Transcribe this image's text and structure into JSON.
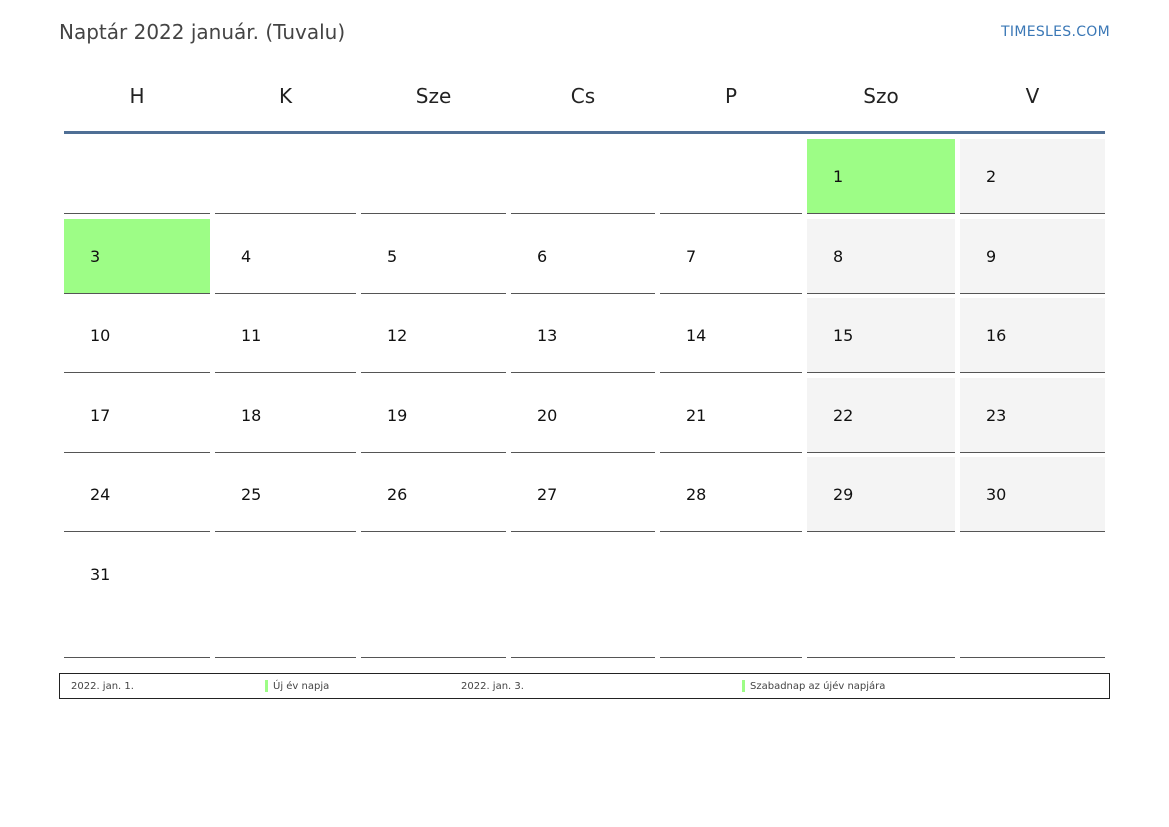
{
  "header": {
    "title": "Naptár 2022 január. (Tuvalu)",
    "brand": "TIMESLES.COM"
  },
  "weekdays": [
    "H",
    "K",
    "Sze",
    "Cs",
    "P",
    "Szo",
    "V"
  ],
  "weeks": [
    [
      "",
      "",
      "",
      "",
      "",
      "1",
      "2"
    ],
    [
      "3",
      "4",
      "5",
      "6",
      "7",
      "8",
      "9"
    ],
    [
      "10",
      "11",
      "12",
      "13",
      "14",
      "15",
      "16"
    ],
    [
      "17",
      "18",
      "19",
      "20",
      "21",
      "22",
      "23"
    ],
    [
      "24",
      "25",
      "26",
      "27",
      "28",
      "29",
      "30"
    ],
    [
      "31",
      "",
      "",
      "",
      "",
      "",
      ""
    ]
  ],
  "holiday_days": [
    "1",
    "3"
  ],
  "colors": {
    "holiday": "#9dfd86",
    "weekend": "#f4f4f4",
    "header_line": "#4f6f95",
    "brand": "#3b78b6"
  },
  "legend": [
    {
      "date": "2022. jan. 1.",
      "name": "Új év napja"
    },
    {
      "date": "2022. jan. 3.",
      "name": "Szabadnap az újév napjára"
    }
  ]
}
